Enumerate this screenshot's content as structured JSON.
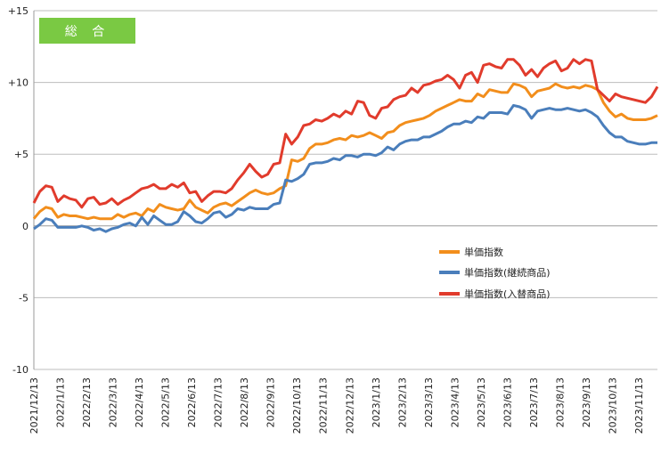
{
  "badge": {
    "label": "総 合",
    "color": "#7ac943"
  },
  "chart_data": {
    "type": "line",
    "ylim": [
      -10,
      15
    ],
    "yticks": [
      15,
      10,
      5,
      0,
      -5,
      -10
    ],
    "ytick_labels": [
      "+15",
      "+10",
      "+5",
      "0",
      "-5",
      "-10"
    ],
    "grid": "horizontal",
    "legend_position": "bottom-right",
    "x_tick_labels": [
      "2021/12/13",
      "2022/1/13",
      "2022/2/13",
      "2022/3/13",
      "2022/4/13",
      "2022/5/13",
      "2022/6/13",
      "2022/7/13",
      "2022/8/13",
      "2022/9/13",
      "2022/10/13",
      "2022/11/13",
      "2022/12/13",
      "2023/1/13",
      "2023/2/13",
      "2023/3/13",
      "2023/4/13",
      "2023/5/13",
      "2023/6/13",
      "2023/7/13",
      "2023/8/13",
      "2023/9/13",
      "2023/10/13",
      "2023/11/13"
    ],
    "series": [
      {
        "name": "単価指数",
        "color": "#f28e1c",
        "values": [
          0.5,
          1.0,
          1.3,
          1.2,
          0.6,
          0.8,
          0.7,
          0.7,
          0.6,
          0.5,
          0.6,
          0.5,
          0.5,
          0.5,
          0.8,
          0.6,
          0.8,
          0.9,
          0.7,
          1.2,
          1.0,
          1.5,
          1.3,
          1.2,
          1.1,
          1.2,
          1.8,
          1.3,
          1.1,
          0.9,
          1.3,
          1.5,
          1.6,
          1.4,
          1.7,
          2.0,
          2.3,
          2.5,
          2.3,
          2.2,
          2.3,
          2.6,
          2.8,
          4.6,
          4.5,
          4.7,
          5.4,
          5.7,
          5.7,
          5.8,
          6.0,
          6.1,
          6.0,
          6.3,
          6.2,
          6.3,
          6.5,
          6.3,
          6.1,
          6.5,
          6.6,
          7.0,
          7.2,
          7.3,
          7.4,
          7.5,
          7.7,
          8.0,
          8.2,
          8.4,
          8.6,
          8.8,
          8.7,
          8.7,
          9.2,
          9.0,
          9.5,
          9.4,
          9.3,
          9.3,
          9.9,
          9.8,
          9.6,
          9.0,
          9.4,
          9.5,
          9.6,
          9.9,
          9.7,
          9.6,
          9.7,
          9.6,
          9.8,
          9.7,
          9.5,
          8.6,
          8.0,
          7.6,
          7.8,
          7.5,
          7.4,
          7.4,
          7.4,
          7.5,
          7.7
        ]
      },
      {
        "name": "単価指数(継続商品)",
        "color": "#4a7ebb",
        "values": [
          -0.2,
          0.1,
          0.5,
          0.4,
          -0.1,
          -0.1,
          -0.1,
          -0.1,
          0.0,
          -0.1,
          -0.3,
          -0.2,
          -0.4,
          -0.2,
          -0.1,
          0.1,
          0.2,
          0.0,
          0.6,
          0.1,
          0.7,
          0.4,
          0.1,
          0.1,
          0.3,
          1.0,
          0.7,
          0.3,
          0.2,
          0.5,
          0.9,
          1.0,
          0.6,
          0.8,
          1.2,
          1.1,
          1.3,
          1.2,
          1.2,
          1.2,
          1.5,
          1.6,
          3.2,
          3.1,
          3.3,
          3.6,
          4.3,
          4.4,
          4.4,
          4.5,
          4.7,
          4.6,
          4.9,
          4.9,
          4.8,
          5.0,
          5.0,
          4.9,
          5.1,
          5.5,
          5.3,
          5.7,
          5.9,
          6.0,
          6.0,
          6.2,
          6.2,
          6.4,
          6.6,
          6.9,
          7.1,
          7.1,
          7.3,
          7.2,
          7.6,
          7.5,
          7.9,
          7.9,
          7.9,
          7.8,
          8.4,
          8.3,
          8.1,
          7.5,
          8.0,
          8.1,
          8.2,
          8.1,
          8.1,
          8.2,
          8.1,
          8.0,
          8.1,
          7.9,
          7.6,
          7.0,
          6.5,
          6.2,
          6.2,
          5.9,
          5.8,
          5.7,
          5.7,
          5.8,
          5.8
        ]
      },
      {
        "name": "単価指数(入替商品)",
        "color": "#e13b2c",
        "values": [
          1.6,
          2.4,
          2.8,
          2.7,
          1.7,
          2.1,
          1.9,
          1.8,
          1.3,
          1.9,
          2.0,
          1.5,
          1.6,
          1.9,
          1.5,
          1.8,
          2.0,
          2.3,
          2.6,
          2.7,
          2.9,
          2.6,
          2.6,
          2.9,
          2.7,
          3.0,
          2.3,
          2.4,
          1.7,
          2.1,
          2.4,
          2.4,
          2.3,
          2.6,
          3.2,
          3.7,
          4.3,
          3.8,
          3.4,
          3.6,
          4.3,
          4.4,
          6.4,
          5.7,
          6.2,
          7.0,
          7.1,
          7.4,
          7.3,
          7.5,
          7.8,
          7.6,
          8.0,
          7.8,
          8.7,
          8.6,
          7.7,
          7.5,
          8.2,
          8.3,
          8.8,
          9.0,
          9.1,
          9.6,
          9.3,
          9.8,
          9.9,
          10.1,
          10.2,
          10.5,
          10.2,
          9.6,
          10.5,
          10.7,
          10.0,
          11.2,
          11.3,
          11.1,
          11.0,
          11.6,
          11.6,
          11.2,
          10.5,
          10.9,
          10.4,
          11.0,
          11.3,
          11.5,
          10.8,
          11.0,
          11.6,
          11.3,
          11.6,
          11.5,
          9.5,
          9.1,
          8.7,
          9.2,
          9.0,
          8.9,
          8.8,
          8.7,
          8.6,
          9.0,
          9.7
        ]
      }
    ]
  }
}
